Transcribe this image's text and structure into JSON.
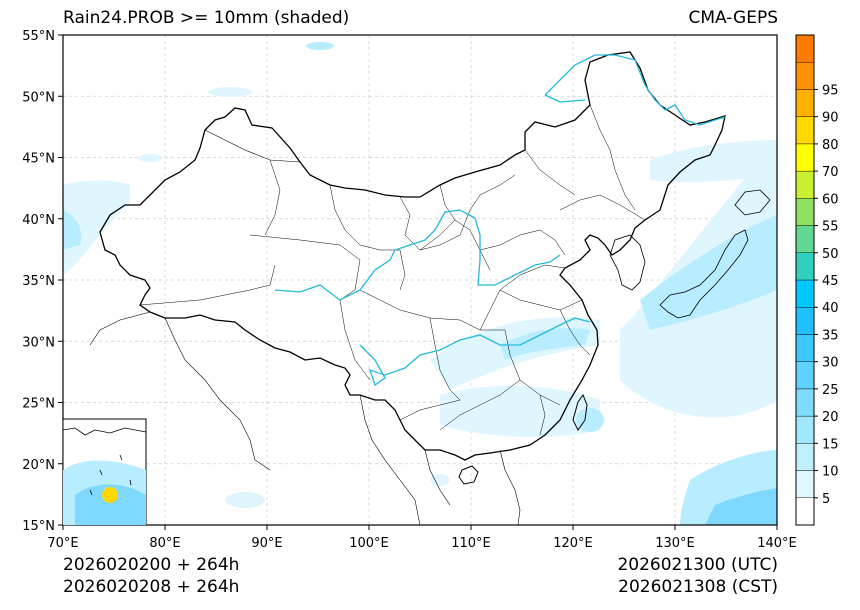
{
  "title": {
    "left": "Rain24.PROB >= 10mm (shaded)",
    "right": "CMA-GEPS"
  },
  "footer": {
    "left_line1": "2026020200 + 264h",
    "left_line2": "2026020208 + 264h",
    "right_line1": "2026021300 (UTC)",
    "right_line2": "2026021308 (CST)"
  },
  "map": {
    "lon_range": [
      70,
      140
    ],
    "lat_range": [
      15,
      55
    ],
    "lon_ticks": [
      "70°E",
      "80°E",
      "90°E",
      "100°E",
      "110°E",
      "120°E",
      "130°E",
      "140°E"
    ],
    "lat_ticks": [
      "15°N",
      "20°N",
      "25°N",
      "30°N",
      "35°N",
      "40°N",
      "45°N",
      "50°N",
      "55°N"
    ]
  },
  "colorbar": {
    "labels": [
      "5",
      "10",
      "15",
      "20",
      "25",
      "30",
      "35",
      "40",
      "45",
      "50",
      "55",
      "60",
      "70",
      "80",
      "90",
      "95"
    ],
    "colors": [
      "#ffffff",
      "#e0f8ff",
      "#c0f0ff",
      "#a0e8ff",
      "#7fdcff",
      "#5fd2ff",
      "#3fc8ff",
      "#20c0ff",
      "#00c8ff",
      "#30d0c0",
      "#60d890",
      "#90e060",
      "#c8f030",
      "#ffff00",
      "#ffd800",
      "#ffb000",
      "#ff9000",
      "#ff7a00"
    ]
  },
  "colors": {
    "border": "#000000",
    "river": "#22bbdd",
    "shade_light": "#dff6ff",
    "shade_mid": "#b8ecff",
    "shade_dark": "#7fd8ff"
  }
}
